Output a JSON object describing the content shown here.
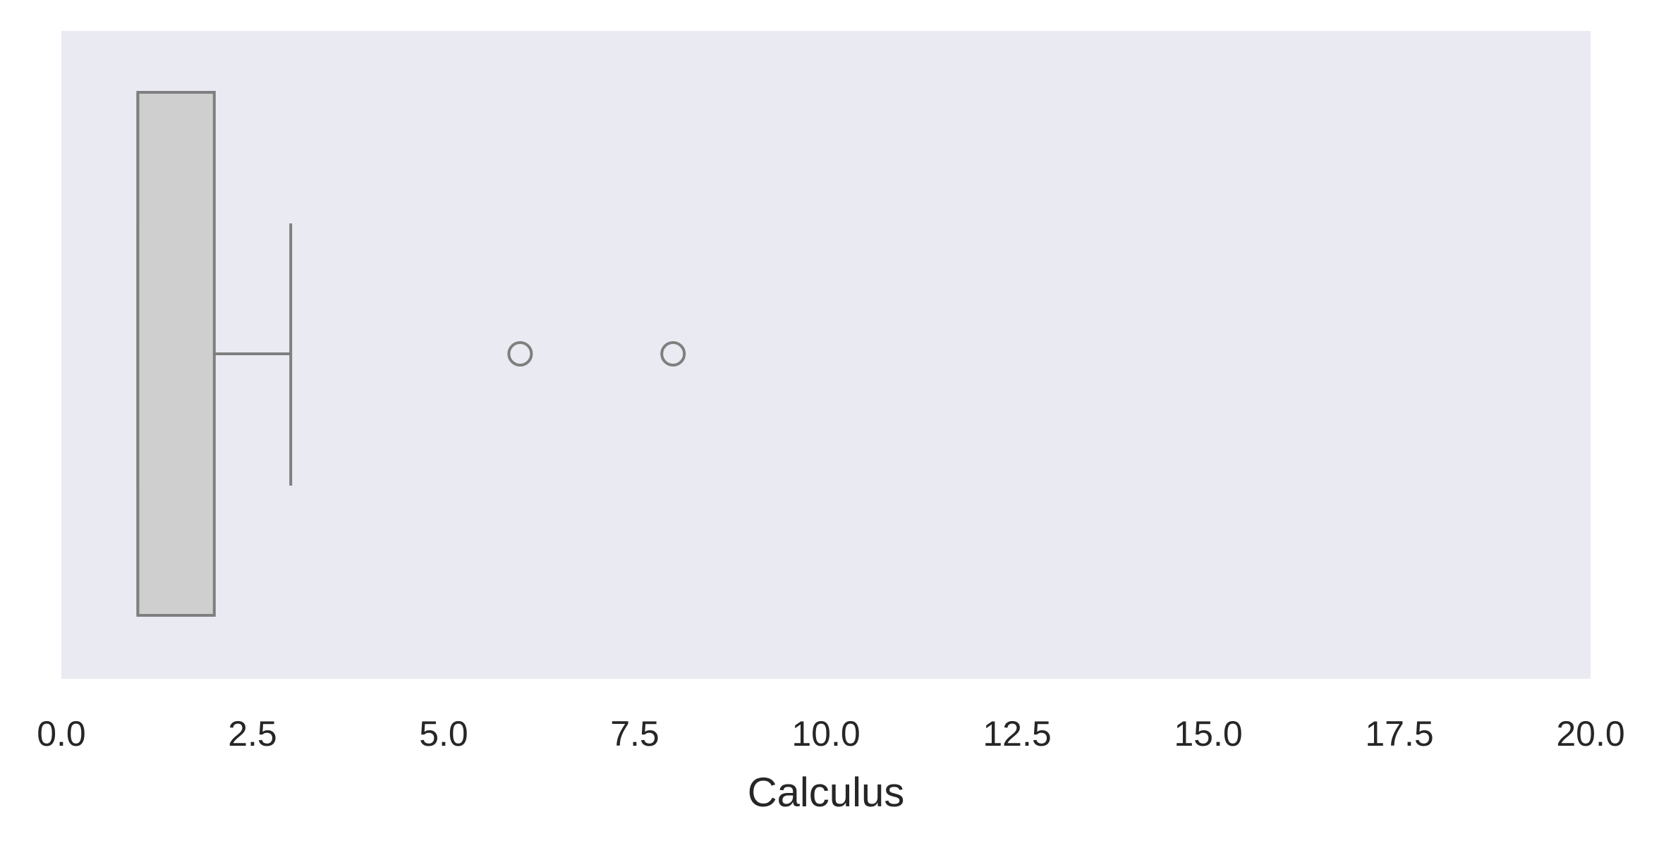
{
  "chart_data": {
    "type": "box",
    "orientation": "horizontal",
    "xlabel": "Calculus",
    "ylabel": "",
    "xlim": [
      0,
      20
    ],
    "xticks": [
      0,
      2.5,
      5,
      7.5,
      10,
      12.5,
      15,
      17.5,
      20
    ],
    "xtick_labels": [
      "0.0",
      "2.5",
      "5.0",
      "7.5",
      "10.0",
      "12.5",
      "15.0",
      "17.5",
      "20.0"
    ],
    "grid": false,
    "box": {
      "q1": 1,
      "median": 1,
      "q3": 2,
      "whisker_low": 1,
      "whisker_high": 3
    },
    "outliers": [
      6,
      8
    ],
    "colors": {
      "background": "#eaeaf2",
      "box_fill": "#cfcfcf",
      "line": "#7f7f7f",
      "text": "#262626"
    }
  }
}
